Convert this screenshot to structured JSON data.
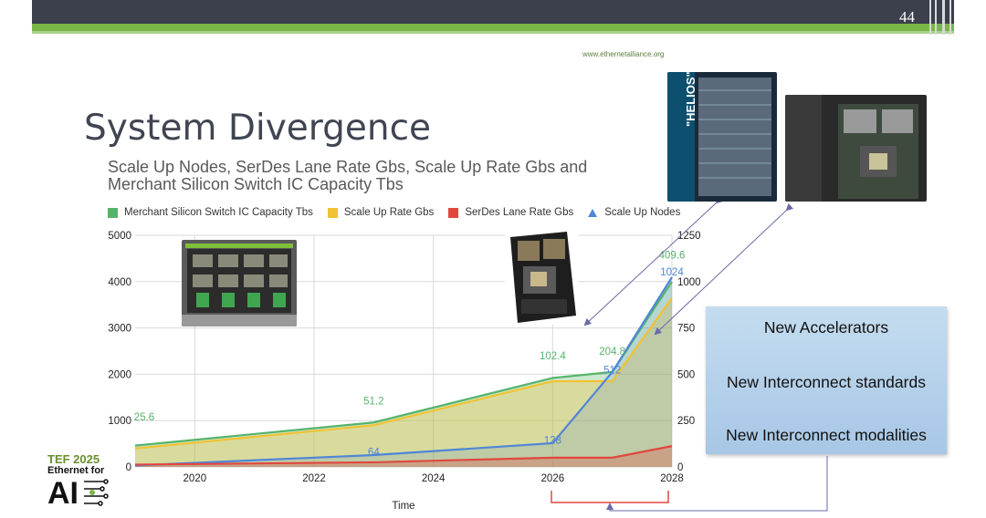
{
  "slide": {
    "page_number": "44",
    "url": "www.ethernetalliance.org",
    "title": "System Divergence"
  },
  "logo": {
    "line1": "TEF 2025",
    "line2": "Ethernet for",
    "line3": "AI"
  },
  "callout": {
    "items": [
      "New Accelerators",
      "New Interconnect standards",
      "New Interconnect modalities"
    ]
  },
  "photos": [
    {
      "name": "server-tray-photo"
    },
    {
      "name": "accelerator-module-photo"
    },
    {
      "name": "helios-rack-photo",
      "text": "\"HELIOS\""
    },
    {
      "name": "compute-board-photo"
    }
  ],
  "colors": {
    "green": "#56b36a",
    "yellow": "#f1c232",
    "red": "#e0483f",
    "blue": "#4f86d6",
    "grid": "#d9d9d9",
    "arrow": "#6b6aa8"
  },
  "chart_data": {
    "type": "area",
    "title": "Scale Up Nodes, SerDes Lane Rate Gbs, Scale Up Rate Gbs and Merchant Silicon Switch IC Capacity Tbs",
    "xlabel": "Time",
    "xlim": [
      2019,
      2028
    ],
    "x_ticks": [
      "2020",
      "2022",
      "2024",
      "2026",
      "2028"
    ],
    "ylim_left": [
      0,
      5000
    ],
    "y_ticks_left": [
      "0",
      "1000",
      "2000",
      "3000",
      "4000",
      "5000"
    ],
    "ylim_right": [
      0,
      1250
    ],
    "y_ticks_right": [
      "0",
      "250",
      "500",
      "750",
      "1000",
      "1250"
    ],
    "legend_position": "top",
    "series": [
      {
        "name": "Merchant Silicon Switch IC Capacity Tbs",
        "color": "#56b36a",
        "axis": "left",
        "x": [
          2019,
          2023,
          2026,
          2027,
          2028
        ],
        "y": [
          460,
          960,
          1920,
          2050,
          4000
        ]
      },
      {
        "name": "Scale Up Rate Gbs",
        "color": "#f1c232",
        "axis": "left",
        "x": [
          2019,
          2023,
          2026,
          2027,
          2028
        ],
        "y": [
          400,
          900,
          1850,
          1850,
          3650
        ]
      },
      {
        "name": "SerDes Lane Rate Gbs",
        "color": "#e0483f",
        "axis": "left",
        "x": [
          2019,
          2023,
          2026,
          2027,
          2028
        ],
        "y": [
          50,
          100,
          200,
          200,
          450
        ]
      },
      {
        "name": "Scale Up Nodes",
        "color": "#4f86d6",
        "axis": "right",
        "x": [
          2019,
          2023,
          2026,
          2027,
          2028
        ],
        "y": [
          8,
          64,
          128,
          512,
          1024
        ]
      }
    ],
    "annotations": [
      {
        "text": "25.6",
        "x": 2019,
        "y": 1000,
        "color": "#56b36a"
      },
      {
        "text": "51.2",
        "x": 2023,
        "y": 1350,
        "color": "#56b36a"
      },
      {
        "text": "102.4",
        "x": 2026,
        "y": 2320,
        "color": "#56b36a"
      },
      {
        "text": "204.8",
        "x": 2027,
        "y": 2420,
        "color": "#56b36a"
      },
      {
        "text": "409.6",
        "x": 2028,
        "y": 4500,
        "color": "#56b36a"
      },
      {
        "text": "64",
        "x": 2023,
        "y": 245,
        "color": "#4f86d6"
      },
      {
        "text": "128",
        "x": 2026,
        "y": 500,
        "color": "#4f86d6"
      },
      {
        "text": "512",
        "x": 2027,
        "y": 2020,
        "color": "#4f86d6"
      },
      {
        "text": "1024",
        "x": 2028,
        "y": 4130,
        "color": "#4f86d6"
      }
    ]
  }
}
